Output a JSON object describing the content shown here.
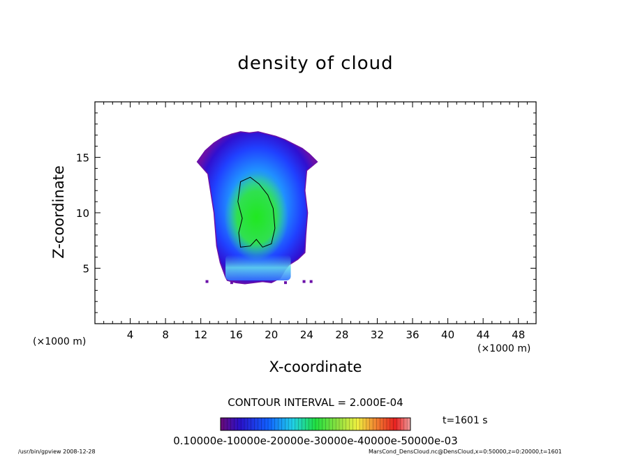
{
  "chart_data": {
    "type": "heatmap",
    "title": "density of cloud",
    "xlabel": "X-coordinate",
    "ylabel": "Z-coordinate",
    "x_unit": "(×1000 m)",
    "x_unit_right": "(×1000 m)",
    "xlim": [
      0,
      50
    ],
    "ylim": [
      0,
      20
    ],
    "x_ticks": [
      4,
      8,
      12,
      16,
      20,
      24,
      28,
      32,
      36,
      40,
      44,
      48
    ],
    "y_ticks": [
      5,
      10,
      15
    ],
    "contour_interval_text": "CONTOUR INTERVAL = 2.000E-04",
    "time_text": "t=1601 s",
    "colorbar_labels": [
      "0.1000E-10",
      "0.1000E-03",
      "0.2000E-03",
      "0.3000E-03",
      "0.4000E-03",
      "0.5000E-03"
    ],
    "colorbar_overlap_text": "0.10000e-10000e-20000e-30000e-40000e-50000e-03",
    "colorbar_range": [
      0,
      0.00055
    ],
    "cloud_outline_x": [
      11.6,
      12.5,
      13.5,
      14.5,
      15.5,
      16.5,
      17.5,
      18.5,
      19.5,
      20.5,
      21.5,
      22.5,
      23.5,
      24.3,
      25.2,
      24.0,
      23.8,
      24.1,
      23.9,
      23.8,
      23.0,
      22.0,
      21.5,
      21.0,
      20.0,
      19.0,
      17.0,
      16.0,
      15.0,
      14.8,
      14.2,
      13.8,
      13.5,
      13.0,
      12.8,
      11.6
    ],
    "cloud_outline_z": [
      14.6,
      15.6,
      16.3,
      16.8,
      17.1,
      17.3,
      17.2,
      17.3,
      17.1,
      16.9,
      16.6,
      16.2,
      15.8,
      15.3,
      14.6,
      13.8,
      12.0,
      10.0,
      8.0,
      6.4,
      5.8,
      5.3,
      4.8,
      4.1,
      3.7,
      3.8,
      3.6,
      3.7,
      3.9,
      4.2,
      5.5,
      7.0,
      10.0,
      12.5,
      13.5,
      14.6
    ],
    "core_center": [
      18.3,
      9.6
    ],
    "footer_left": "/usr/bin/gpview   2008-12-28",
    "footer_right": "MarsCond_DensCloud.nc@DensCloud,x=0:50000,z=0:20000,t=1601"
  }
}
